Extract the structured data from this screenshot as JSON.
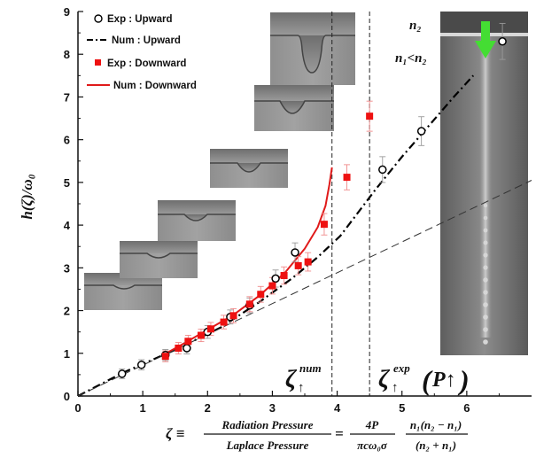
{
  "chart_data": {
    "type": "scatter",
    "xlim": [
      0,
      7
    ],
    "ylim": [
      0,
      9
    ],
    "x_ticks": [
      "0",
      "1",
      "2",
      "3",
      "4",
      "5",
      "6"
    ],
    "y_ticks": [
      "0",
      "1",
      "2",
      "3",
      "4",
      "5",
      "6",
      "7",
      "8",
      "9"
    ],
    "ylabel": "h(ζ)/ω₀",
    "xlabel": {
      "lhs": "ζ ≡",
      "frac1_num": "Radiation Pressure",
      "frac1_den": "Laplace Pressure",
      "frac2_num": "4P",
      "frac2_den": "πcω₀σ",
      "frac3_num": "n₁(n₂ − n₁)",
      "frac3_den": "(n₂ + n₁)"
    },
    "grid": false,
    "legend_position": "top-left",
    "series": [
      {
        "name": "Exp : Upward",
        "kind": "scatter",
        "marker": "open-circle",
        "color": "#000000",
        "points": [
          [
            0.68,
            0.52
          ],
          [
            0.98,
            0.73
          ],
          [
            1.35,
            0.96
          ],
          [
            1.68,
            1.12
          ],
          [
            2.0,
            1.5
          ],
          [
            2.35,
            1.85
          ],
          [
            2.65,
            2.12
          ],
          [
            3.05,
            2.75
          ],
          [
            3.35,
            3.36
          ],
          [
            4.7,
            5.3
          ],
          [
            5.3,
            6.2
          ],
          [
            6.55,
            8.3
          ]
        ]
      },
      {
        "name": "Num : Upward",
        "kind": "line",
        "dash": "dash-dot",
        "color": "#000000",
        "points": [
          [
            0.0,
            0.0
          ],
          [
            0.7,
            0.55
          ],
          [
            1.5,
            1.08
          ],
          [
            2.2,
            1.6
          ],
          [
            2.8,
            2.2
          ],
          [
            3.3,
            2.75
          ],
          [
            3.7,
            3.25
          ],
          [
            4.05,
            3.75
          ],
          [
            4.3,
            4.25
          ],
          [
            4.6,
            4.85
          ],
          [
            5.0,
            5.6
          ],
          [
            5.4,
            6.3
          ],
          [
            5.8,
            7.0
          ],
          [
            6.1,
            7.5
          ]
        ]
      },
      {
        "name": "Exp : Downward",
        "kind": "scatter",
        "marker": "filled-square",
        "color": "#ee1111",
        "points": [
          [
            1.35,
            0.93
          ],
          [
            1.55,
            1.12
          ],
          [
            1.7,
            1.28
          ],
          [
            1.9,
            1.42
          ],
          [
            2.05,
            1.57
          ],
          [
            2.25,
            1.73
          ],
          [
            2.4,
            1.88
          ],
          [
            2.65,
            2.15
          ],
          [
            2.82,
            2.38
          ],
          [
            3.0,
            2.58
          ],
          [
            3.18,
            2.82
          ],
          [
            3.4,
            3.05
          ],
          [
            3.55,
            3.14
          ],
          [
            3.8,
            4.02
          ],
          [
            4.15,
            5.12
          ],
          [
            4.5,
            6.55
          ]
        ]
      },
      {
        "name": "Num : Downward",
        "kind": "line",
        "dash": "solid",
        "color": "#e01a1a",
        "points": [
          [
            1.3,
            0.95
          ],
          [
            1.6,
            1.2
          ],
          [
            2.0,
            1.55
          ],
          [
            2.4,
            1.9
          ],
          [
            2.8,
            2.35
          ],
          [
            3.2,
            2.9
          ],
          [
            3.5,
            3.45
          ],
          [
            3.7,
            3.95
          ],
          [
            3.82,
            4.45
          ],
          [
            3.88,
            4.95
          ],
          [
            3.92,
            5.35
          ]
        ]
      },
      {
        "kind": "line",
        "dash": "dashed-thin",
        "color": "#333333",
        "points": [
          [
            0.0,
            0.0
          ],
          [
            7.0,
            5.05
          ]
        ]
      }
    ],
    "vlines": [
      3.92,
      4.5
    ],
    "annotations": [
      {
        "label": "ζ↑num",
        "base": "ζ",
        "sup": "num",
        "arrow": "↑"
      },
      {
        "label": "ζ↑exp(P↑)",
        "base": "ζ",
        "sup": "exp",
        "arrow": "↑",
        "paren": "P↑"
      }
    ],
    "inset_labels": {
      "n2": "n₂",
      "cond": "n₁<n₂"
    },
    "error_bars": true
  }
}
